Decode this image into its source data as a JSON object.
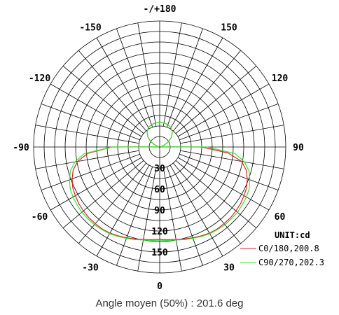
{
  "chart_data": {
    "type": "polar",
    "angle_tick_labels": [
      "-/+180",
      "150",
      "120",
      "90",
      "60",
      "30",
      "0",
      "-30",
      "-60",
      "-90",
      "-120",
      "-150"
    ],
    "radial_tick_labels": [
      "30",
      "60",
      "90",
      "120",
      "150"
    ],
    "radial_ticks": [
      30,
      60,
      90,
      120,
      150
    ],
    "rlim": [
      0,
      180
    ],
    "angle_grid_step_deg": 10,
    "grid": true,
    "unit_label": "UNIT:cd",
    "series": [
      {
        "name": "C0/180,200.8",
        "color": "#e02020",
        "angles": [
          -90,
          -85,
          -80,
          -75,
          -70,
          -65,
          -60,
          -55,
          -50,
          -45,
          -40,
          -35,
          -30,
          -25,
          -20,
          -15,
          -10,
          -5,
          0,
          5,
          10,
          15,
          20,
          25,
          30,
          35,
          40,
          45,
          50,
          55,
          60,
          65,
          70,
          75,
          80,
          85,
          90,
          100,
          110,
          120,
          130,
          140,
          150,
          160,
          170,
          180,
          190,
          200,
          210,
          220,
          230,
          240,
          250,
          260,
          270
        ],
        "values": [
          68,
          103,
          119,
          128,
          133,
          137,
          139,
          141,
          142,
          143,
          143,
          143,
          142,
          140,
          138,
          136,
          134,
          133,
          132,
          133,
          134,
          136,
          138,
          140,
          142,
          143,
          143,
          143,
          142,
          141,
          139,
          137,
          133,
          128,
          119,
          98,
          60,
          2,
          6,
          14,
          22,
          28,
          32,
          34,
          35,
          35,
          35,
          34,
          32,
          28,
          22,
          14,
          6,
          2,
          68
        ]
      },
      {
        "name": "C90/270,202.3",
        "color": "#33e633",
        "angles": [
          -90,
          -85,
          -80,
          -75,
          -70,
          -65,
          -60,
          -55,
          -50,
          -45,
          -40,
          -35,
          -30,
          -25,
          -20,
          -15,
          -10,
          -5,
          0,
          5,
          10,
          15,
          20,
          25,
          30,
          35,
          40,
          45,
          50,
          55,
          60,
          65,
          70,
          75,
          80,
          85,
          90,
          100,
          110,
          120,
          130,
          140,
          150,
          160,
          170,
          180,
          190,
          200,
          210,
          220,
          230,
          240,
          250,
          260,
          270
        ],
        "values": [
          68,
          108,
          123,
          132,
          137,
          141,
          143,
          144,
          145,
          145,
          145,
          144,
          143,
          141,
          139,
          137,
          135,
          134,
          133,
          134,
          135,
          137,
          139,
          141,
          143,
          144,
          145,
          145,
          145,
          144,
          143,
          141,
          137,
          132,
          123,
          108,
          68,
          2,
          6,
          14,
          22,
          28,
          32,
          34,
          35,
          35,
          35,
          34,
          32,
          28,
          22,
          14,
          6,
          2,
          68
        ]
      }
    ]
  },
  "legend": {
    "unit": "UNIT:cd",
    "items": [
      {
        "label": "C0/180,200.8",
        "color": "#e02020"
      },
      {
        "label": "C90/270,202.3",
        "color": "#33e633"
      }
    ]
  },
  "caption": "Angle moyen (50%) : 201.6 deg"
}
